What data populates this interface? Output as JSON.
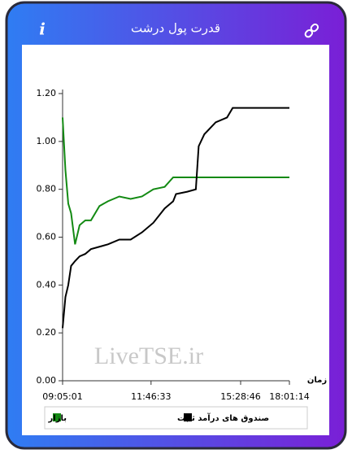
{
  "header": {
    "title": "قدرت پول درشت",
    "info": "i"
  },
  "chart_data": {
    "type": "line",
    "watermark": "LiveTSE.ir",
    "x_label": "زمان",
    "x": [
      0,
      0.5,
      1,
      1.5,
      2.2,
      3,
      4,
      5,
      6.5,
      8,
      10,
      12,
      14,
      16,
      18,
      19.5,
      20,
      22,
      23.5,
      24,
      25,
      27,
      29,
      30,
      35,
      40
    ],
    "xlim": [
      0,
      40
    ],
    "xticks": [
      {
        "value": 0,
        "label": "09:05:01"
      },
      {
        "value": 15.6,
        "label": "11:46:33"
      },
      {
        "value": 31.4,
        "label": "15:28:46"
      },
      {
        "value": 40,
        "label": "18:01:14"
      }
    ],
    "ylim": [
      0,
      1.2
    ],
    "yticks": [
      {
        "value": 0,
        "label": "0.00"
      },
      {
        "value": 0.2,
        "label": "0.20"
      },
      {
        "value": 0.4,
        "label": "0.40"
      },
      {
        "value": 0.6,
        "label": "0.60"
      },
      {
        "value": 0.8,
        "label": "0.80"
      },
      {
        "value": 1.0,
        "label": "1.00"
      },
      {
        "value": 1.2,
        "label": "1.20"
      }
    ],
    "series": [
      {
        "name": "بازار",
        "color": "#138a13",
        "values": [
          1.1,
          0.88,
          0.74,
          0.7,
          0.57,
          0.65,
          0.67,
          0.67,
          0.73,
          0.75,
          0.77,
          0.76,
          0.77,
          0.8,
          0.81,
          0.85,
          0.85,
          0.85,
          0.85,
          0.85,
          0.85,
          0.85,
          0.85,
          0.85,
          0.85,
          0.85
        ]
      },
      {
        "name": "صندوق های درآمد ثابت",
        "color": "#000000",
        "values": [
          0.22,
          0.35,
          0.4,
          0.48,
          0.5,
          0.52,
          0.53,
          0.55,
          0.56,
          0.57,
          0.59,
          0.59,
          0.62,
          0.66,
          0.72,
          0.75,
          0.78,
          0.79,
          0.8,
          0.98,
          1.03,
          1.08,
          1.1,
          1.14,
          1.14,
          1.14
        ]
      }
    ]
  }
}
